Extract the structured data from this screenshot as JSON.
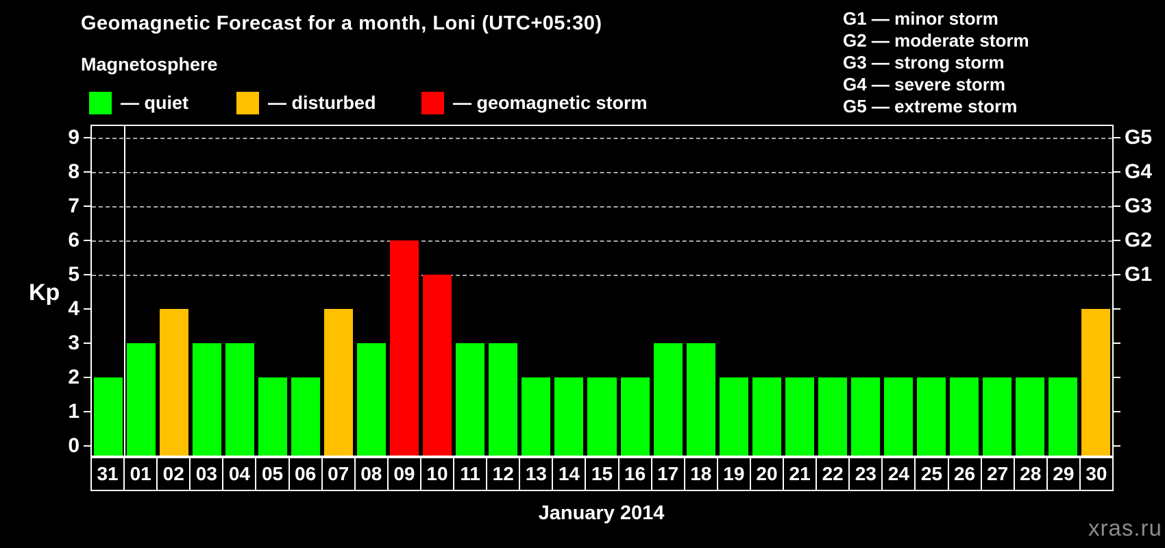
{
  "header": {
    "title": "Geomagnetic Forecast for a month, Loni (UTC+05:30)",
    "subtitle": "Magnetosphere",
    "watermark": "xras.ru"
  },
  "legend": {
    "items": [
      {
        "key": "quiet",
        "label": "— quiet",
        "color": "#00ff00"
      },
      {
        "key": "disturbed",
        "label": "— disturbed",
        "color": "#ffc000"
      },
      {
        "key": "storm",
        "label": "— geomagnetic storm",
        "color": "#ff0000"
      }
    ]
  },
  "storm_scale_legend": {
    "items": [
      "G1 — minor storm",
      "G2 — moderate storm",
      "G3 — strong storm",
      "G4 — severe storm",
      "G5 — extreme storm"
    ]
  },
  "chart_data": {
    "type": "bar",
    "title": "Geomagnetic Forecast for a month, Loni (UTC+05:30)",
    "xlabel": "January 2014",
    "ylabel": "Kp",
    "ylim": [
      0,
      9
    ],
    "y_ticks": [
      0,
      1,
      2,
      3,
      4,
      5,
      6,
      7,
      8,
      9
    ],
    "gridlines_at": [
      5,
      6,
      7,
      8,
      9
    ],
    "grid": "dashed",
    "legend_position": "top",
    "right_axis_labels": [
      {
        "label": "G1",
        "kp": 5
      },
      {
        "label": "G2",
        "kp": 6
      },
      {
        "label": "G3",
        "kp": 7
      },
      {
        "label": "G4",
        "kp": 8
      },
      {
        "label": "G5",
        "kp": 9
      }
    ],
    "separator_after_index": 0,
    "categories": [
      "31",
      "01",
      "02",
      "03",
      "04",
      "05",
      "06",
      "07",
      "08",
      "09",
      "10",
      "11",
      "12",
      "13",
      "14",
      "15",
      "16",
      "17",
      "18",
      "19",
      "20",
      "21",
      "22",
      "23",
      "24",
      "25",
      "26",
      "27",
      "28",
      "29",
      "30"
    ],
    "values": [
      2,
      3,
      4,
      3,
      3,
      2,
      2,
      4,
      3,
      6,
      5,
      3,
      3,
      2,
      2,
      2,
      2,
      3,
      3,
      2,
      2,
      2,
      2,
      2,
      2,
      2,
      2,
      2,
      2,
      2,
      4
    ],
    "statuses": [
      "quiet",
      "quiet",
      "disturbed",
      "quiet",
      "quiet",
      "quiet",
      "quiet",
      "disturbed",
      "quiet",
      "storm",
      "storm",
      "quiet",
      "quiet",
      "quiet",
      "quiet",
      "quiet",
      "quiet",
      "quiet",
      "quiet",
      "quiet",
      "quiet",
      "quiet",
      "quiet",
      "quiet",
      "quiet",
      "quiet",
      "quiet",
      "quiet",
      "quiet",
      "quiet",
      "disturbed"
    ],
    "colors": {
      "quiet": "#00ff00",
      "disturbed": "#ffc000",
      "storm": "#ff0000"
    },
    "gridline_color": "#aaaaaa",
    "background_color": "#000000",
    "text_color": "#ffffff"
  }
}
